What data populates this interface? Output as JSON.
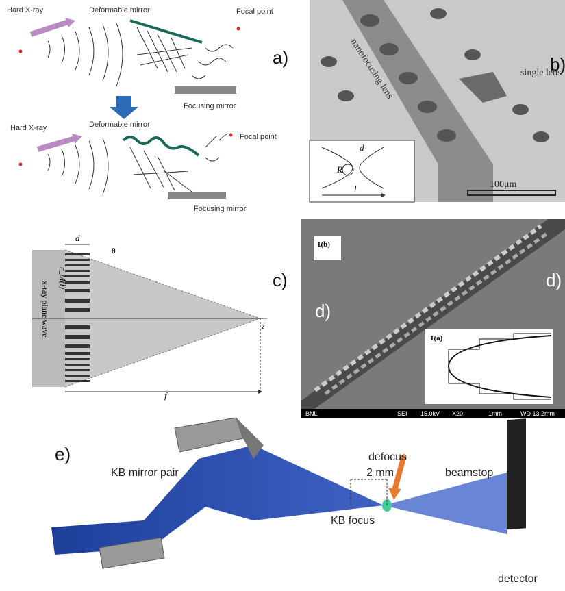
{
  "panels": {
    "a": {
      "label": "a)",
      "top": {
        "source": "Hard X-ray",
        "mirror": "Deformable mirror",
        "focus": "Focal point",
        "focusing": "Focusing mirror"
      },
      "bottom": {
        "source": "Hard X-ray",
        "mirror": "Deformable mirror",
        "focus": "Focal point",
        "focusing": "Focusing mirror"
      }
    },
    "b": {
      "label": "b)",
      "lens": "nanofocusing lens",
      "single": "single lens",
      "d": "d",
      "r": "R",
      "l": "l",
      "scale": "100μm"
    },
    "c": {
      "label": "c)",
      "d": "d",
      "theta": "θ",
      "radius": "r_M(l)",
      "wave": "x-ray plane wave",
      "z": "z",
      "f": "f"
    },
    "d": {
      "label_left": "d)",
      "label_right": "d)",
      "inset_b": "1(b)",
      "inset_a": "1(a)",
      "footer": [
        "BNL",
        "SEI",
        "15.0kV",
        "X20",
        "1mm",
        "WD 13.2mm"
      ]
    },
    "e": {
      "label": "e)",
      "mirrors": "KB mirror pair",
      "defocus": "defocus",
      "distance": "2 mm",
      "beamstop": "beamstop",
      "focus": "KB focus",
      "detector": "detector"
    }
  }
}
